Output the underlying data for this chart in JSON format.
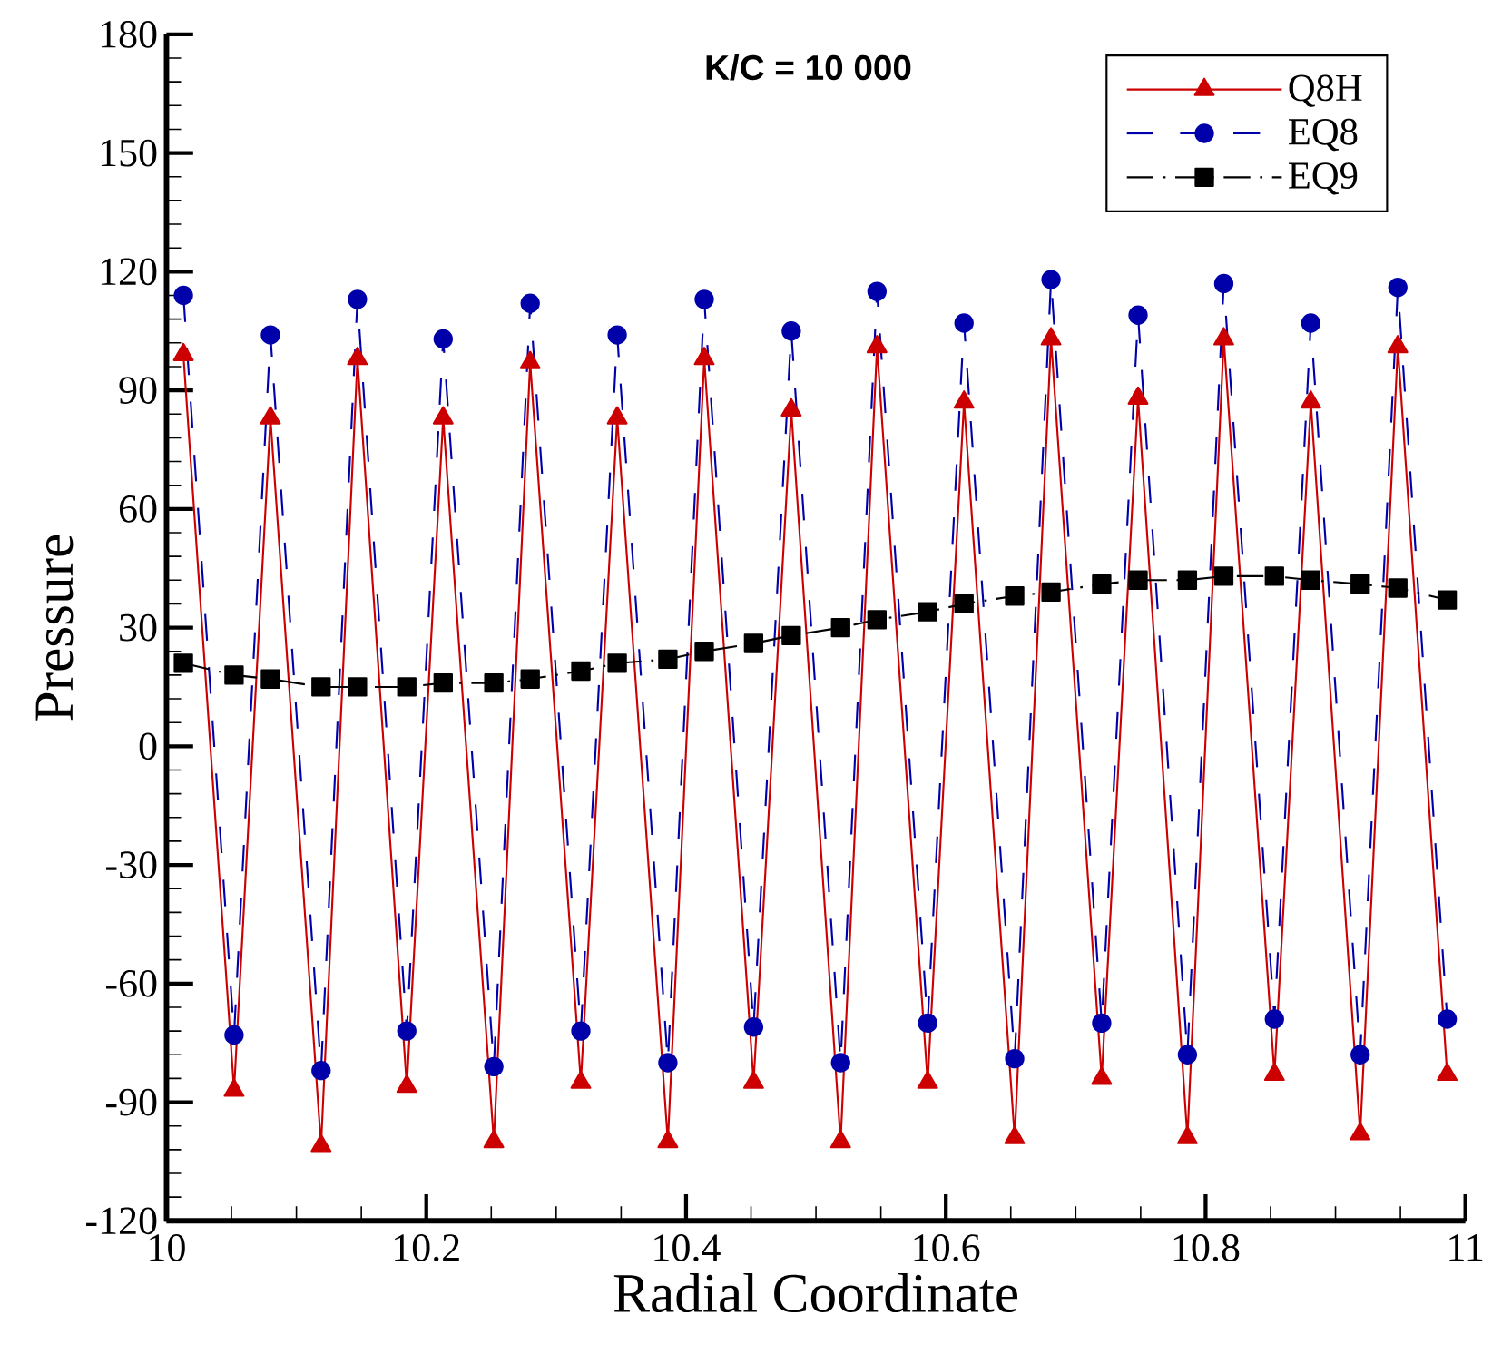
{
  "chart_data": {
    "type": "line",
    "title": "K/C = 10 000",
    "xlabel": "Radial Coordinate",
    "ylabel": "Pressure",
    "x": [
      10.013,
      10.052,
      10.08,
      10.119,
      10.147,
      10.185,
      10.213,
      10.252,
      10.28,
      10.319,
      10.347,
      10.386,
      10.414,
      10.452,
      10.481,
      10.519,
      10.547,
      10.586,
      10.614,
      10.653,
      10.681,
      10.72,
      10.748,
      10.786,
      10.814,
      10.853,
      10.881,
      10.919,
      10.948,
      10.986
    ],
    "series": [
      {
        "name": "Q8H",
        "color": "#cc0000",
        "marker": "triangle",
        "line_style": "solid",
        "values": [
          99,
          -87,
          83,
          -101,
          98,
          -86,
          83,
          -100,
          97,
          -85,
          83,
          -100,
          98,
          -85,
          85,
          -100,
          101,
          -85,
          87,
          -99,
          103,
          -84,
          88,
          -99,
          103,
          -83,
          87,
          -98,
          101,
          -83
        ]
      },
      {
        "name": "EQ8",
        "color": "#0000aa",
        "marker": "circle",
        "line_style": "dashed",
        "values": [
          114,
          -73,
          104,
          -82,
          113,
          -72,
          103,
          -81,
          112,
          -72,
          104,
          -80,
          113,
          -71,
          105,
          -80,
          115,
          -70,
          107,
          -79,
          118,
          -70,
          109,
          -78,
          117,
          -69,
          107,
          -78,
          116,
          -69
        ]
      },
      {
        "name": "EQ9",
        "color": "#000000",
        "marker": "square",
        "line_style": "dashdot",
        "values": [
          21,
          18,
          17,
          15,
          15,
          15,
          16,
          16,
          17,
          19,
          21,
          22,
          24,
          26,
          28,
          30,
          32,
          34,
          36,
          38,
          39,
          41,
          42,
          42,
          43,
          43,
          42,
          41,
          40,
          37
        ]
      }
    ],
    "xlim": [
      10,
      11
    ],
    "xticks": [
      10,
      10.2,
      10.4,
      10.6,
      10.8,
      11
    ],
    "ylim": [
      -120,
      180
    ],
    "yticks": [
      -120,
      -90,
      -60,
      -30,
      0,
      30,
      60,
      90,
      120,
      150,
      180
    ],
    "grid": false,
    "legend": "top right"
  }
}
